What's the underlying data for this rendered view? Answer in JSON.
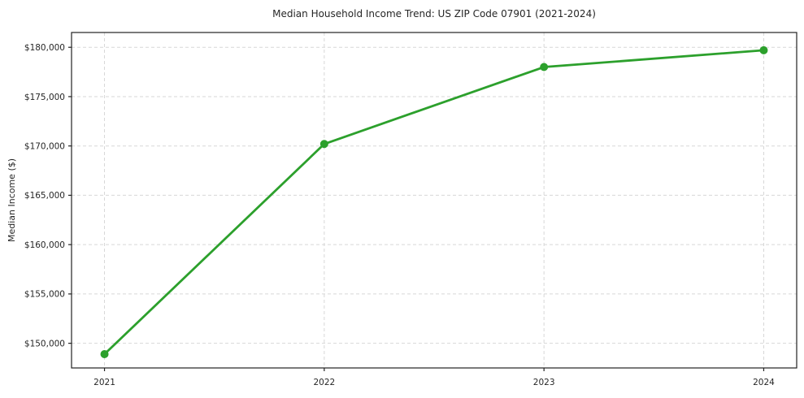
{
  "title": "Median Household Income Trend: US ZIP Code 07901 (2021-2024)",
  "chart_data": {
    "type": "line",
    "title": "Median Household Income Trend: US ZIP Code 07901 (2021-2024)",
    "xlabel": "",
    "ylabel": "Median Income ($)",
    "x": [
      2021,
      2022,
      2023,
      2024
    ],
    "series": [
      {
        "name": "Median Household Income",
        "values": [
          148900,
          170200,
          178000,
          179700
        ],
        "color": "#2ca02c",
        "marker": "circle"
      }
    ],
    "xticks": [
      2021,
      2022,
      2023,
      2024
    ],
    "xtick_labels": [
      "2021",
      "2022",
      "2023",
      "2024"
    ],
    "yticks": [
      150000,
      155000,
      160000,
      165000,
      170000,
      175000,
      180000
    ],
    "ytick_labels": [
      "$150,000",
      "$155,000",
      "$160,000",
      "$165,000",
      "$170,000",
      "$175,000",
      "$180,000"
    ],
    "xlim": [
      2020.85,
      2024.15
    ],
    "ylim": [
      147500,
      181500
    ],
    "grid": true,
    "grid_style": "dashed",
    "grid_color": "#d7d7d7",
    "frame_color": "#222222",
    "background_color": "#ffffff",
    "legend": "none"
  }
}
